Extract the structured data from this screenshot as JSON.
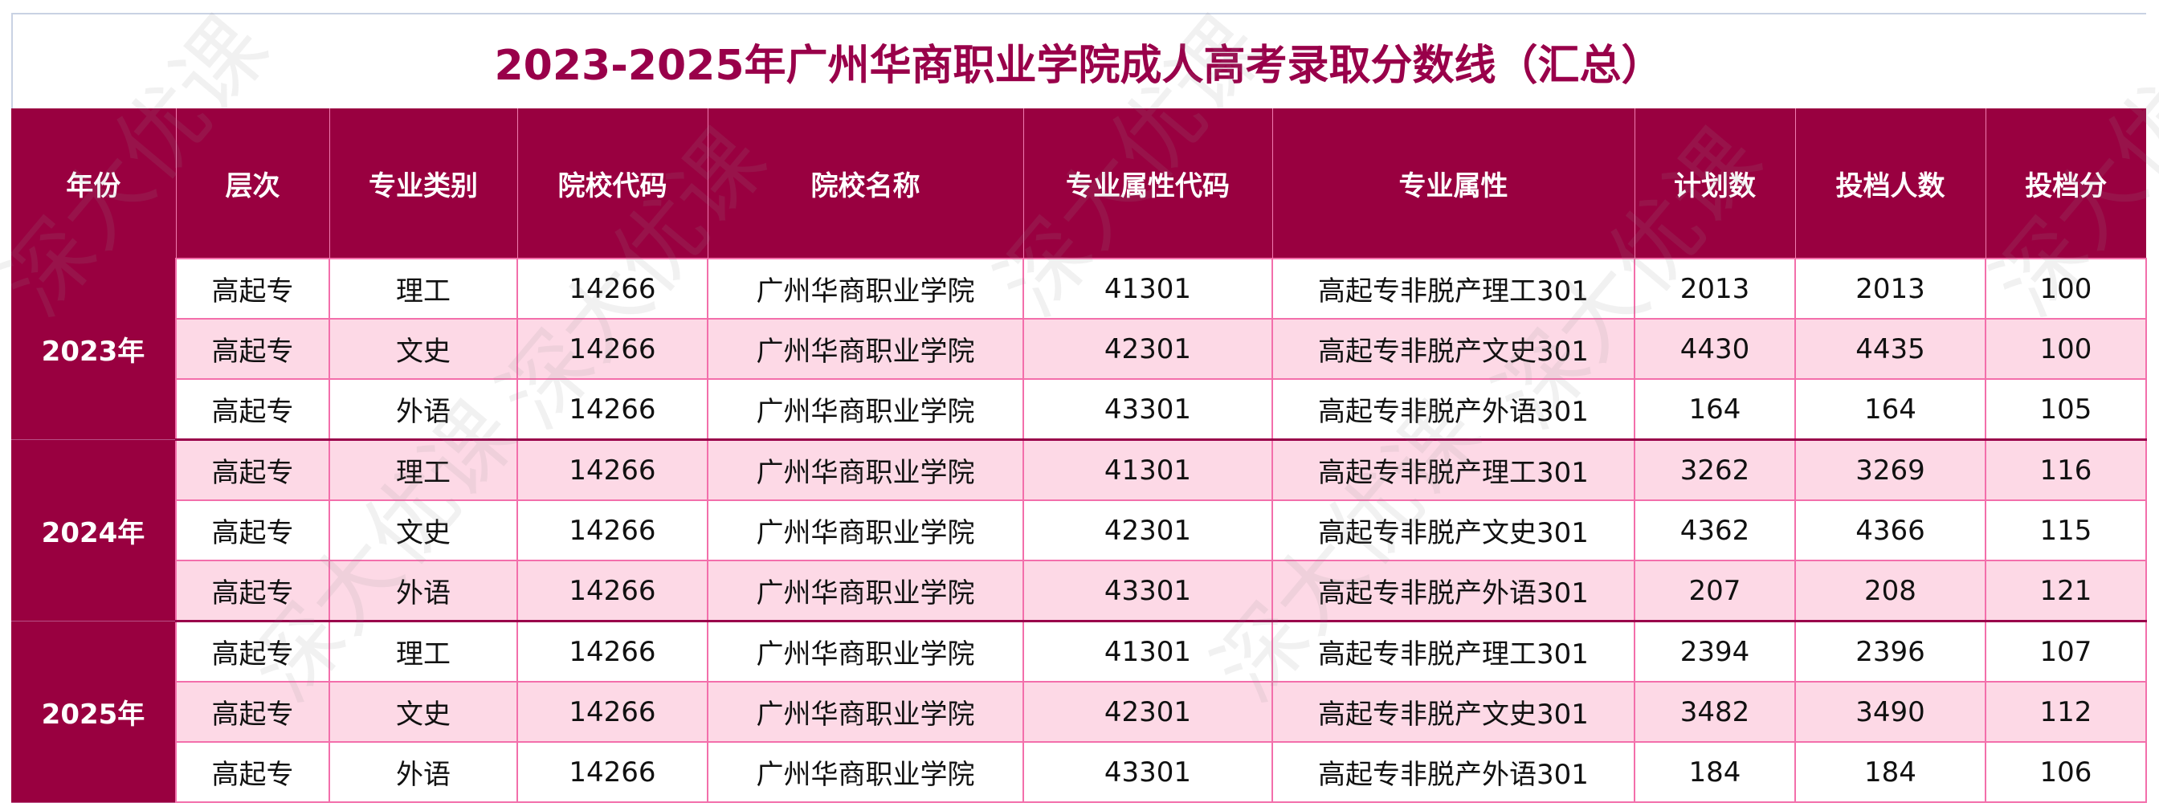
{
  "title": "2023-2025年广州华商职业学院成人高考录取分数线（汇总）",
  "watermark": "深大优课",
  "colors": {
    "header_bg": "#990040",
    "title": "#99004a",
    "row_pink": "#fdd9e6",
    "border": "#f36fab"
  },
  "headers": [
    "年份",
    "层次",
    "专业类别",
    "院校代码",
    "院校名称",
    "专业属性代码",
    "专业属性",
    "计划数",
    "投档人数",
    "投档分"
  ],
  "groups": [
    {
      "year": "2023年",
      "rows": [
        [
          "高起专",
          "理工",
          "14266",
          "广州华商职业学院",
          "41301",
          "高起专非脱产理工301",
          "2013",
          "2013",
          "100"
        ],
        [
          "高起专",
          "文史",
          "14266",
          "广州华商职业学院",
          "42301",
          "高起专非脱产文史301",
          "4430",
          "4435",
          "100"
        ],
        [
          "高起专",
          "外语",
          "14266",
          "广州华商职业学院",
          "43301",
          "高起专非脱产外语301",
          "164",
          "164",
          "105"
        ]
      ]
    },
    {
      "year": "2024年",
      "rows": [
        [
          "高起专",
          "理工",
          "14266",
          "广州华商职业学院",
          "41301",
          "高起专非脱产理工301",
          "3262",
          "3269",
          "116"
        ],
        [
          "高起专",
          "文史",
          "14266",
          "广州华商职业学院",
          "42301",
          "高起专非脱产文史301",
          "4362",
          "4366",
          "115"
        ],
        [
          "高起专",
          "外语",
          "14266",
          "广州华商职业学院",
          "43301",
          "高起专非脱产外语301",
          "207",
          "208",
          "121"
        ]
      ]
    },
    {
      "year": "2025年",
      "rows": [
        [
          "高起专",
          "理工",
          "14266",
          "广州华商职业学院",
          "41301",
          "高起专非脱产理工301",
          "2394",
          "2396",
          "107"
        ],
        [
          "高起专",
          "文史",
          "14266",
          "广州华商职业学院",
          "42301",
          "高起专非脱产文史301",
          "3482",
          "3490",
          "112"
        ],
        [
          "高起专",
          "外语",
          "14266",
          "广州华商职业学院",
          "43301",
          "高起专非脱产外语301",
          "184",
          "184",
          "106"
        ]
      ]
    }
  ]
}
